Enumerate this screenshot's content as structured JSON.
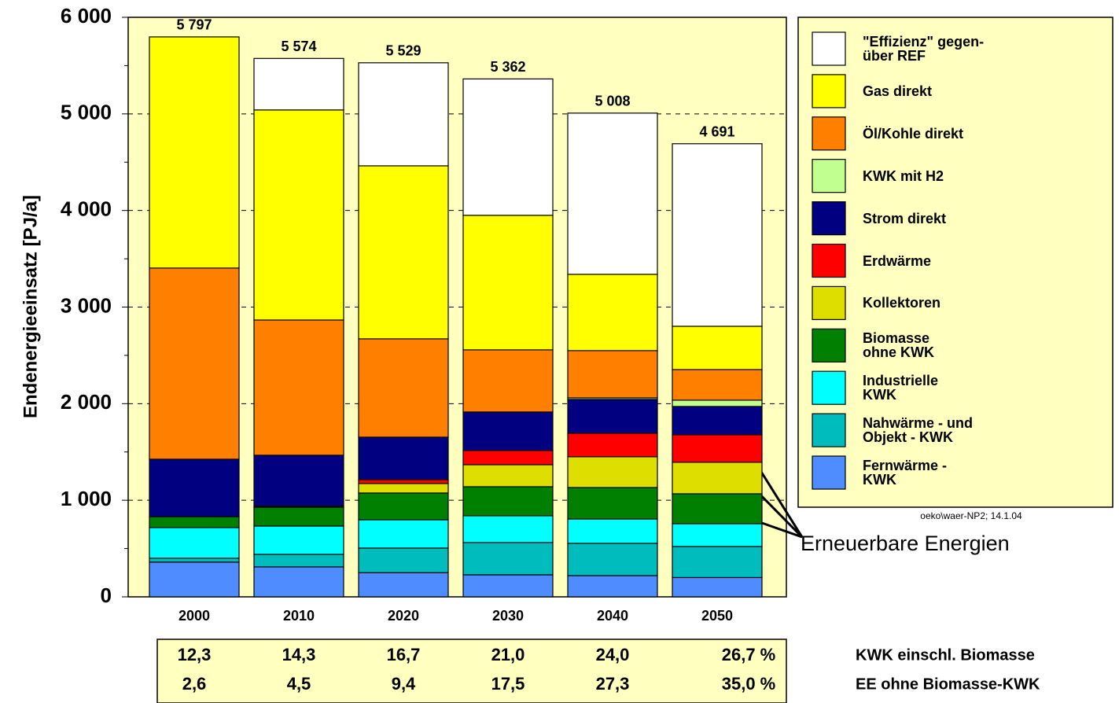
{
  "chart_data": {
    "type": "stacked_bar",
    "ylabel": "Endenergieeinsatz  [PJ/a]",
    "categories": [
      "2000",
      "2010",
      "2020",
      "2030",
      "2040",
      "2050"
    ],
    "ylim": [
      0,
      6000
    ],
    "yticks": [
      0,
      {
        "value": 1000,
        "label": "1 000"
      },
      {
        "value": 2000,
        "label": "2 000"
      },
      {
        "value": 3000,
        "label": "3 000"
      },
      {
        "value": 4000,
        "label": "4 000"
      },
      {
        "value": 5000,
        "label": "5 000"
      },
      {
        "value": 6000,
        "label": "6 000"
      }
    ],
    "grid": true,
    "series": [
      {
        "name": "Fernwärme -\nKWK",
        "color": "#4f8cff",
        "values": [
          360,
          310,
          250,
          228,
          220,
          200
        ]
      },
      {
        "name": "Nahwärme - und\nObjekt - KWK",
        "color": "#00bcbc",
        "values": [
          40,
          130,
          255,
          334,
          334,
          321
        ]
      },
      {
        "name": "Industrielle\nKWK",
        "color": "#00ffff",
        "values": [
          317,
          293,
          293,
          277,
          252,
          236
        ]
      },
      {
        "name": "Biomasse\nohne KWK",
        "color": "#008000",
        "values": [
          113,
          195,
          277,
          301,
          326,
          310
        ]
      },
      {
        "name": "Kollektoren",
        "color": "#dede00",
        "values": [
          0,
          10,
          98,
          228,
          318,
          326
        ]
      },
      {
        "name": "Erdwärme",
        "color": "#ff0000",
        "values": [
          0,
          0,
          40,
          147,
          244,
          285
        ]
      },
      {
        "name": "Strom direkt",
        "color": "#000080",
        "values": [
          595,
          528,
          440,
          399,
          350,
          293
        ]
      },
      {
        "name": "KWK mit H2",
        "color": "#c0ff90",
        "values": [
          0,
          0,
          0,
          0,
          16,
          65
        ]
      },
      {
        "name": "Öl/Kohle direkt",
        "color": "#ff8000",
        "values": [
          1979,
          1400,
          1018,
          643,
          489,
          317
        ]
      },
      {
        "name": "Gas direkt",
        "color": "#ffff00",
        "values": [
          2393,
          2175,
          1791,
          1393,
          790,
          448
        ]
      },
      {
        "name": "\"Effizienz\" gegen-\nüber REF",
        "color": "#ffffff",
        "values": [
          0,
          533,
          1067,
          1412,
          1669,
          1890
        ]
      }
    ],
    "totals": {
      "values": [
        5797,
        5574,
        5529,
        5362,
        5008,
        4691
      ],
      "value_labels": [
        "5 797",
        "5 574",
        "5 529",
        "5 362",
        "5 008",
        "4 691"
      ]
    },
    "source": "oeko\\waer-NP2; 14.1.04",
    "annotation": "Erneuerbare Energien",
    "table": {
      "rows": [
        {
          "label": "KWK einschl. Biomasse",
          "cells": [
            "12,3",
            "14,3",
            "16,7",
            "21,0",
            "24,0",
            "26,7 %"
          ]
        },
        {
          "label": "EE ohne Biomasse-KWK",
          "cells": [
            "2,6",
            "4,5",
            "9,4",
            "17,5",
            "27,3",
            "35,0 %"
          ]
        }
      ]
    }
  }
}
